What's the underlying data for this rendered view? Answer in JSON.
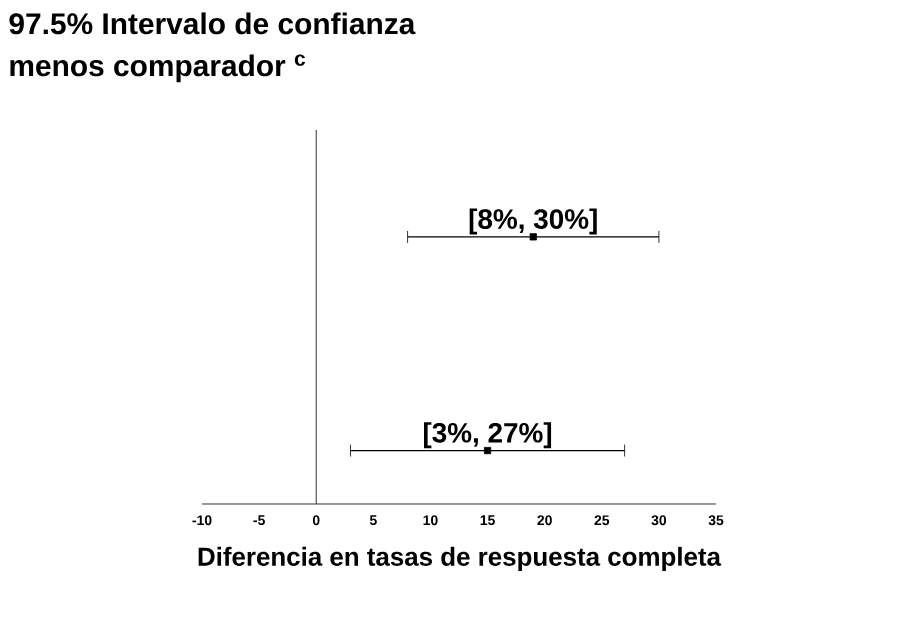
{
  "chart_data": {
    "type": "scatter",
    "orientation": "horizontal",
    "title": "97.5% Intervalo de confianza",
    "subtitle": "menos comparador $^{c}$",
    "xlabel": "Diferencia en tasas de respuesta completa",
    "categories": [
      null,
      null
    ],
    "values": [
      19,
      15
    ],
    "errors": [
      [
        8,
        30
      ],
      [
        3,
        27
      ]
    ],
    "value_labels": [
      "[8%, 30%]",
      "[3%, 27%]"
    ],
    "color": "#000000",
    "marker": "square",
    "xlim": [
      -10,
      35
    ],
    "xticks": [
      -10,
      -5,
      0,
      5,
      10,
      15,
      20,
      25,
      30,
      35
    ],
    "ref_lines": [
      {
        "axis": "x",
        "value": 0,
        "color": "#000000"
      }
    ]
  }
}
